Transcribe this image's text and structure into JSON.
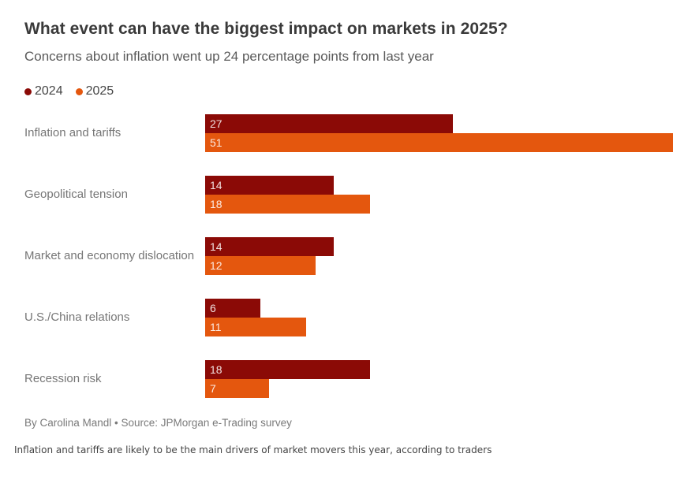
{
  "header": {
    "title": "What event can have the biggest impact on markets in 2025?",
    "subtitle": "Concerns about inflation went up 24 percentage points from last year"
  },
  "legend": [
    {
      "label": "2024",
      "color": "#8b0a06"
    },
    {
      "label": "2025",
      "color": "#e4570e"
    }
  ],
  "chart_data": {
    "type": "bar",
    "orientation": "horizontal",
    "title": "What event can have the biggest impact on markets in 2025?",
    "subtitle": "Concerns about inflation went up 24 percentage points from last year",
    "categories": [
      "Inflation and tariffs",
      "Geopolitical tension",
      "Market and economy dislocation",
      "U.S./China relations",
      "Recession risk"
    ],
    "series": [
      {
        "name": "2024",
        "color": "#8b0a06",
        "values": [
          27,
          14,
          14,
          6,
          18
        ]
      },
      {
        "name": "2025",
        "color": "#e4570e",
        "values": [
          51,
          18,
          12,
          11,
          7
        ]
      }
    ],
    "xlim": [
      0,
      51
    ],
    "grid": false,
    "value_labels": "inside-left",
    "legend_position": "top-left"
  },
  "footer": {
    "byline": "By Carolina Mandl • Source: JPMorgan e-Trading survey"
  },
  "caption": "Inflation and tariffs are likely to be the main drivers of market movers this year, according to traders",
  "colors": {
    "series_2024": "#8b0a06",
    "series_2025": "#e4570e",
    "title_text": "#3a3a3a",
    "subtitle_text": "#5a5a5a",
    "category_text": "#767676",
    "footer_text": "#7a7a7a",
    "caption_text": "#444444",
    "bar_value_text": "#f2e2da",
    "background": "#ffffff"
  }
}
